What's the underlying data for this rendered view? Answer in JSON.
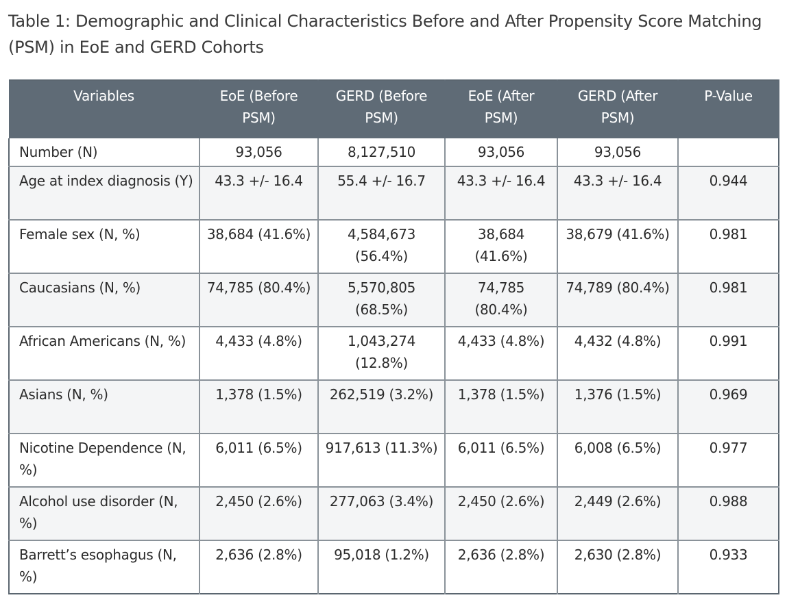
{
  "caption": "Table 1: Demographic and Clinical Characteristics Before and After Propensity Score Matching (PSM) in EoE and GERD Cohorts",
  "table": {
    "headers": [
      "Variables",
      "EoE (Before PSM)",
      "GERD (Before PSM)",
      "EoE (After PSM)",
      "GERD (After PSM)",
      "P-Value"
    ],
    "rows": [
      [
        "Number (N)",
        "93,056",
        "8,127,510",
        "93,056",
        "93,056",
        ""
      ],
      [
        "Age at index diagnosis (Y)",
        "43.3 +/- 16.4",
        "55.4 +/- 16.7",
        "43.3 +/- 16.4",
        "43.3 +/- 16.4",
        "0.944"
      ],
      [
        "Female sex (N, %)",
        "38,684 (41.6%)",
        "4,584,673 (56.4%)",
        "38,684 (41.6%)",
        "38,679 (41.6%)",
        "0.981"
      ],
      [
        "Caucasians (N, %)",
        "74,785 (80.4%)",
        "5,570,805 (68.5%)",
        "74,785 (80.4%)",
        "74,789 (80.4%)",
        "0.981"
      ],
      [
        "African Americans (N, %)",
        "4,433 (4.8%)",
        "1,043,274 (12.8%)",
        "4,433 (4.8%)",
        "4,432 (4.8%)",
        "0.991"
      ],
      [
        "Asians (N, %)",
        "1,378 (1.5%)",
        "262,519 (3.2%)",
        "1,378 (1.5%)",
        "1,376 (1.5%)",
        "0.969"
      ],
      [
        "Nicotine Dependence (N, %)",
        "6,011 (6.5%)",
        "917,613 (11.3%)",
        "6,011 (6.5%)",
        "6,008 (6.5%)",
        "0.977"
      ],
      [
        "Alcohol use disorder (N, %)",
        "2,450 (2.6%)",
        "277,063 (3.4%)",
        "2,450 (2.6%)",
        "2,449 (2.6%)",
        "0.988"
      ],
      [
        "Barrett’s esophagus (N, %)",
        "2,636 (2.8%)",
        "95,018 (1.2%)",
        "2,636 (2.8%)",
        "2,630 (2.8%)",
        "0.933"
      ]
    ]
  }
}
